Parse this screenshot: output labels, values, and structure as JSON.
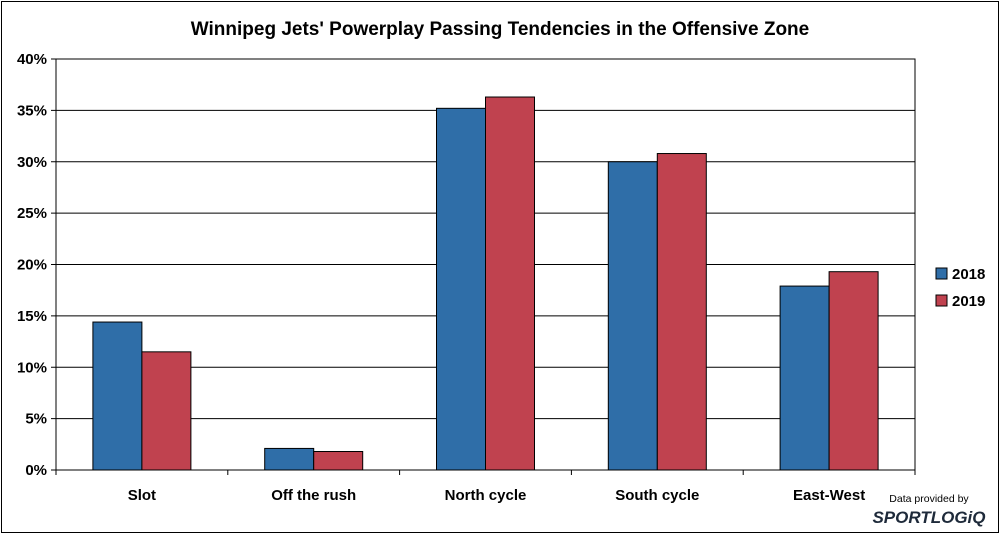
{
  "chart_data": {
    "type": "bar",
    "title": "Winnipeg Jets' Powerplay Passing Tendencies in the Offensive Zone",
    "xlabel": "",
    "ylabel": "",
    "categories": [
      "Slot",
      "Off the rush",
      "North cycle",
      "South cycle",
      "East-West"
    ],
    "series": [
      {
        "name": "2018",
        "color": "#2f6ea8",
        "values": [
          14.4,
          2.1,
          35.2,
          30.0,
          17.9
        ]
      },
      {
        "name": "2019",
        "color": "#c0424f",
        "values": [
          11.5,
          1.8,
          36.3,
          30.8,
          19.3
        ]
      }
    ],
    "ylim": [
      0,
      40
    ],
    "yticks": [
      {
        "value": 0,
        "label": "0%"
      },
      {
        "value": 5,
        "label": "5%"
      },
      {
        "value": 10,
        "label": "10%"
      },
      {
        "value": 15,
        "label": "15%"
      },
      {
        "value": 20,
        "label": "20%"
      },
      {
        "value": 25,
        "label": "25%"
      },
      {
        "value": 30,
        "label": "30%"
      },
      {
        "value": 35,
        "label": "35%"
      },
      {
        "value": 40,
        "label": "40%"
      }
    ],
    "grid": true,
    "legend_position": "right"
  },
  "credit": {
    "text": "Data provided by",
    "brand": "SPORTLOGiQ"
  }
}
